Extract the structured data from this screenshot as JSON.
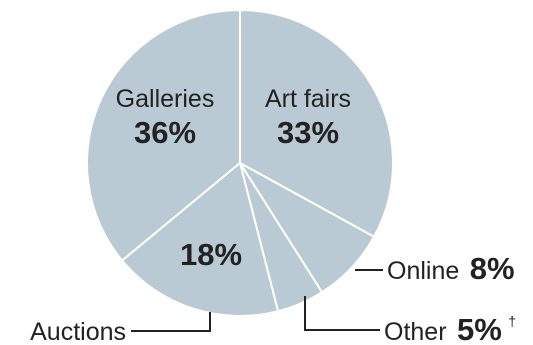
{
  "chart_data": {
    "type": "pie",
    "title": "",
    "slices": [
      {
        "label": "Galleries",
        "value": 36,
        "display": "36%"
      },
      {
        "label": "Art fairs",
        "value": 33,
        "display": "33%"
      },
      {
        "label": "Online",
        "value": 8,
        "display": "8%"
      },
      {
        "label": "Other",
        "value": 5,
        "display": "5%",
        "note_marker": "†"
      },
      {
        "label": "Auctions",
        "value": 18,
        "display": "18%"
      }
    ],
    "colors": {
      "slice_fill": "#b9cad5",
      "slice_border": "#ffffff",
      "text": "#222222",
      "leader_line": "#222222"
    }
  }
}
